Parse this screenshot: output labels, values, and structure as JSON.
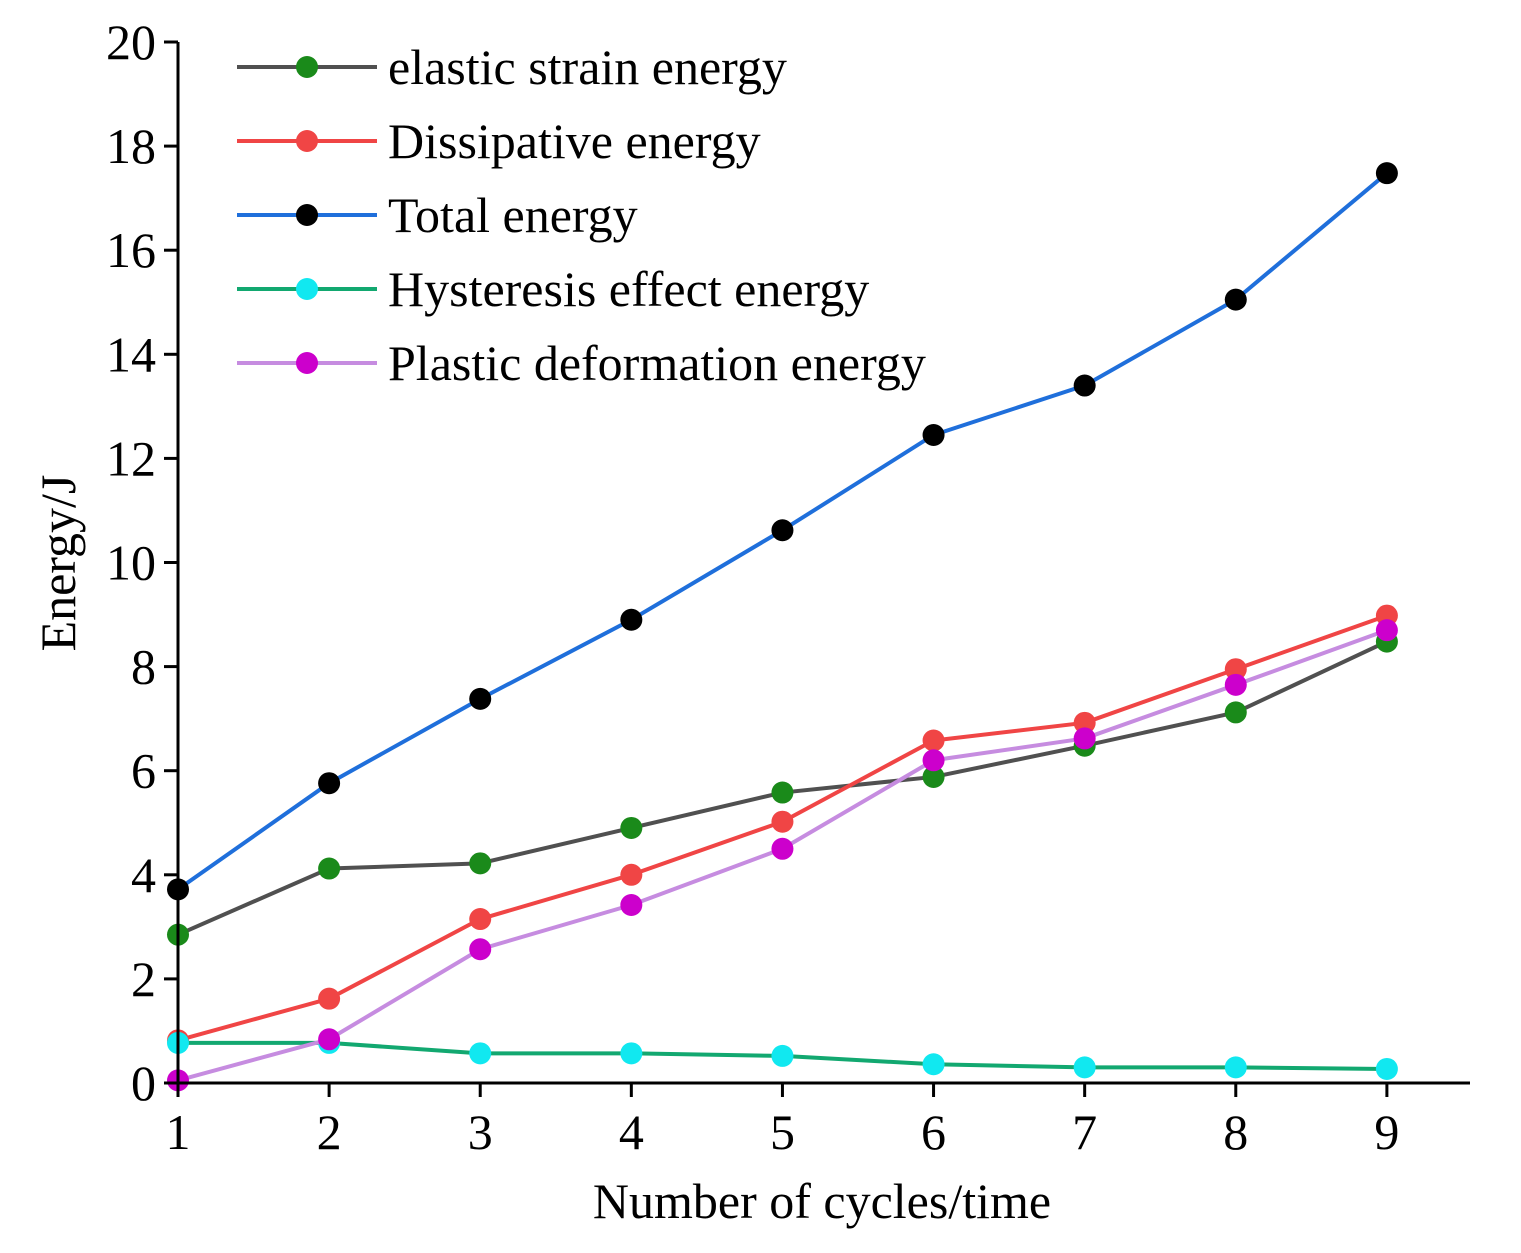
{
  "chart_data": {
    "type": "line",
    "title": "",
    "xlabel": "Number of cycles/time",
    "ylabel": "Energy/J",
    "x": [
      1,
      2,
      3,
      4,
      5,
      6,
      7,
      8,
      9
    ],
    "xlim": [
      1,
      9.55
    ],
    "ylim": [
      0,
      20
    ],
    "xticks": [
      1,
      2,
      3,
      4,
      5,
      6,
      7,
      8,
      9
    ],
    "yticks": [
      0,
      2,
      4,
      6,
      8,
      10,
      12,
      14,
      16,
      18,
      20
    ],
    "grid": false,
    "legend_position": "top-left",
    "series": [
      {
        "name": "elastic strain energy",
        "line_color": "#505050",
        "marker_color": "#1a8a1a",
        "values": [
          2.85,
          4.12,
          4.22,
          4.9,
          5.58,
          5.88,
          6.48,
          7.12,
          8.48
        ]
      },
      {
        "name": "Dissipative energy",
        "line_color": "#f04545",
        "marker_color": "#f04545",
        "values": [
          0.82,
          1.62,
          3.15,
          4.0,
          5.02,
          6.58,
          6.92,
          7.95,
          8.98
        ]
      },
      {
        "name": "Total energy",
        "line_color": "#1f6fdb",
        "marker_color": "#000000",
        "values": [
          3.72,
          5.76,
          7.38,
          8.9,
          10.62,
          12.45,
          13.4,
          15.05,
          17.48
        ]
      },
      {
        "name": "Hysteresis effect energy",
        "line_color": "#12a870",
        "marker_color": "#11e8f0",
        "values": [
          0.77,
          0.77,
          0.57,
          0.57,
          0.52,
          0.36,
          0.3,
          0.3,
          0.27
        ]
      },
      {
        "name": "Plastic deformation energy",
        "line_color": "#c68ce0",
        "marker_color": "#cc00cc",
        "values": [
          0.05,
          0.84,
          2.57,
          3.42,
          4.5,
          6.2,
          6.62,
          7.65,
          8.7
        ]
      }
    ]
  }
}
